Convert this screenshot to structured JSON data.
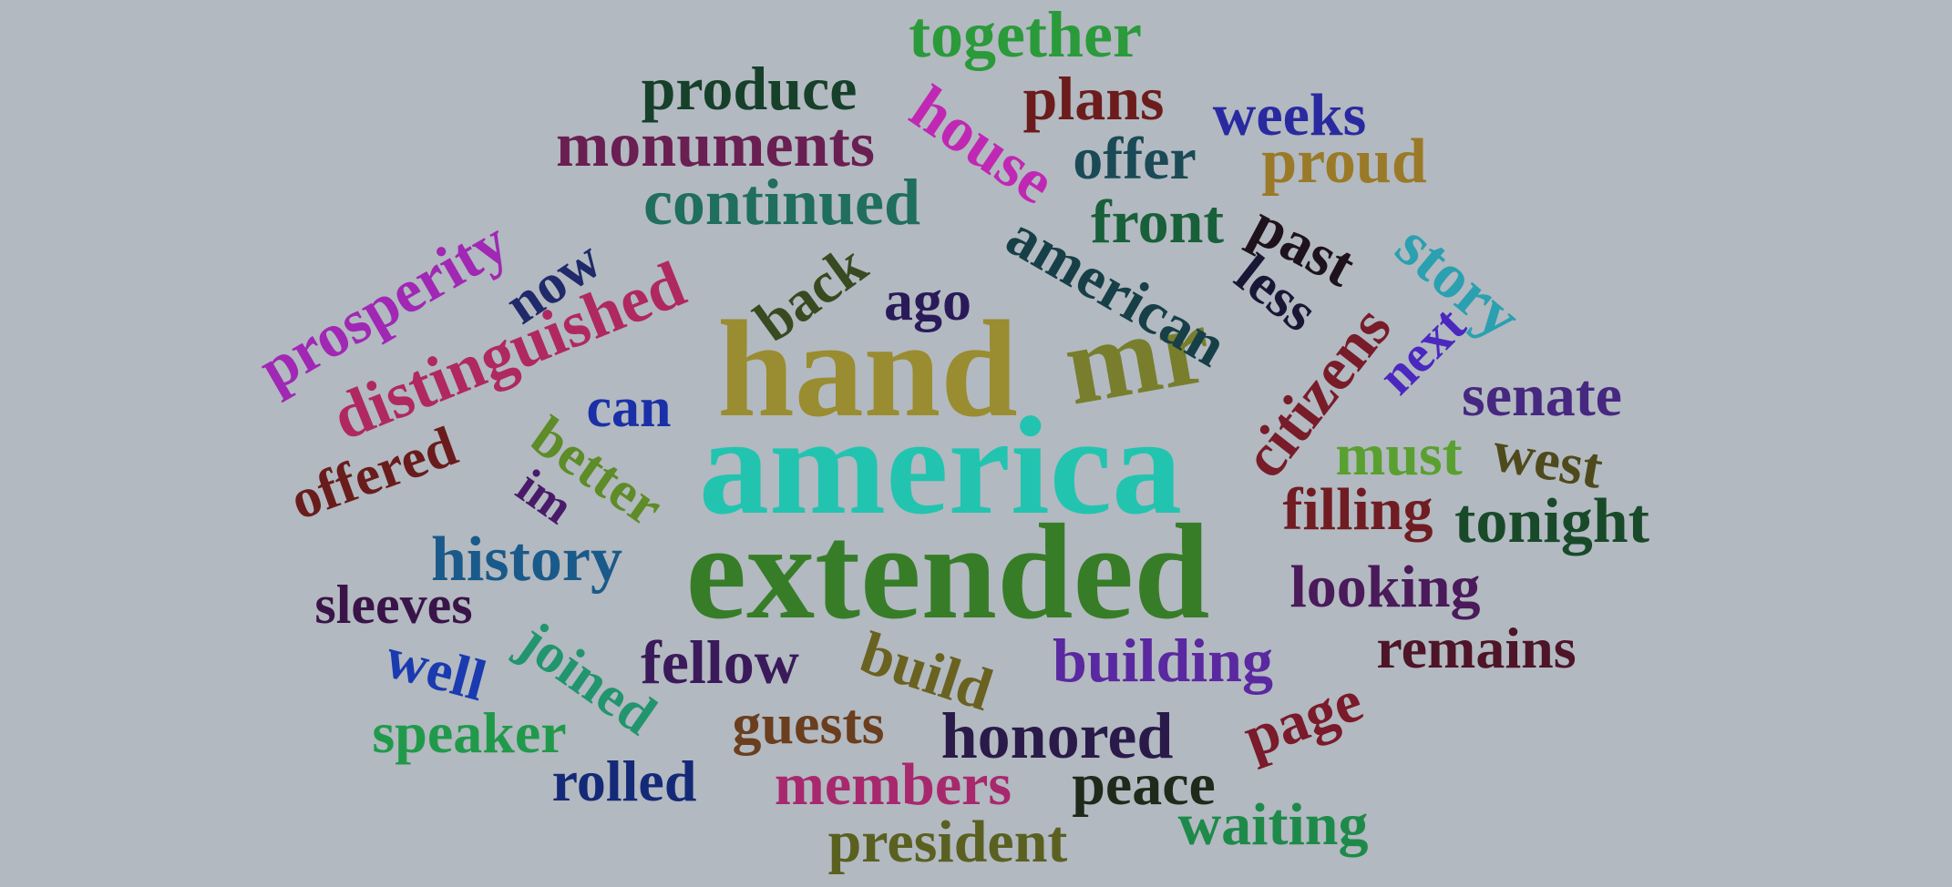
{
  "words": [
    {
      "text": "america",
      "color": "#22c4b0"
    },
    {
      "text": "extended",
      "color": "#377d28"
    },
    {
      "text": "hand",
      "color": "#9a8c30"
    },
    {
      "text": "mr",
      "color": "#787e2c"
    },
    {
      "text": "distinguished",
      "color": "#b02862"
    },
    {
      "text": "continued",
      "color": "#1f6e5e"
    },
    {
      "text": "monuments",
      "color": "#6a1f52"
    },
    {
      "text": "produce",
      "color": "#16402a"
    },
    {
      "text": "together",
      "color": "#2a9a3a"
    },
    {
      "text": "plans",
      "color": "#6c1c1c"
    },
    {
      "text": "weeks",
      "color": "#2a2aa0"
    },
    {
      "text": "house",
      "color": "#c028b4"
    },
    {
      "text": "offer",
      "color": "#1a4a56"
    },
    {
      "text": "proud",
      "color": "#9a7a28"
    },
    {
      "text": "front",
      "color": "#18603a"
    },
    {
      "text": "american",
      "color": "#173f47"
    },
    {
      "text": "past",
      "color": "#1e121c"
    },
    {
      "text": "story",
      "color": "#2aa0b0"
    },
    {
      "text": "less",
      "color": "#1a1636"
    },
    {
      "text": "prosperity",
      "color": "#a028b4"
    },
    {
      "text": "now",
      "color": "#202a6a"
    },
    {
      "text": "back",
      "color": "#384a20"
    },
    {
      "text": "ago",
      "color": "#2a1a5a"
    },
    {
      "text": "citizens",
      "color": "#781c2a"
    },
    {
      "text": "next",
      "color": "#4a28c0"
    },
    {
      "text": "senate",
      "color": "#462880"
    },
    {
      "text": "must",
      "color": "#5aa030"
    },
    {
      "text": "west",
      "color": "#4e4a1c"
    },
    {
      "text": "filling",
      "color": "#701c22"
    },
    {
      "text": "tonight",
      "color": "#184a2a"
    },
    {
      "text": "can",
      "color": "#1a30a8"
    },
    {
      "text": "better",
      "color": "#5e8c28"
    },
    {
      "text": "offered",
      "color": "#6a1c1c"
    },
    {
      "text": "im",
      "color": "#4a1a6a"
    },
    {
      "text": "history",
      "color": "#1a5a8a"
    },
    {
      "text": "looking",
      "color": "#4a1a5a"
    },
    {
      "text": "sleeves",
      "color": "#3a1448"
    },
    {
      "text": "joined",
      "color": "#22956e"
    },
    {
      "text": "remains",
      "color": "#4e1428"
    },
    {
      "text": "well",
      "color": "#1a3ab0"
    },
    {
      "text": "fellow",
      "color": "#3a1a5a"
    },
    {
      "text": "build",
      "color": "#6a6220"
    },
    {
      "text": "building",
      "color": "#5a28a0"
    },
    {
      "text": "page",
      "color": "#7a1a2a"
    },
    {
      "text": "speaker",
      "color": "#209a4a"
    },
    {
      "text": "guests",
      "color": "#6a3e1e"
    },
    {
      "text": "honored",
      "color": "#2a1a4a"
    },
    {
      "text": "rolled",
      "color": "#142a78"
    },
    {
      "text": "members",
      "color": "#a8286e"
    },
    {
      "text": "peace",
      "color": "#1e2a1a"
    },
    {
      "text": "waiting",
      "color": "#1e8a4a"
    },
    {
      "text": "president",
      "color": "#5a6020"
    }
  ]
}
